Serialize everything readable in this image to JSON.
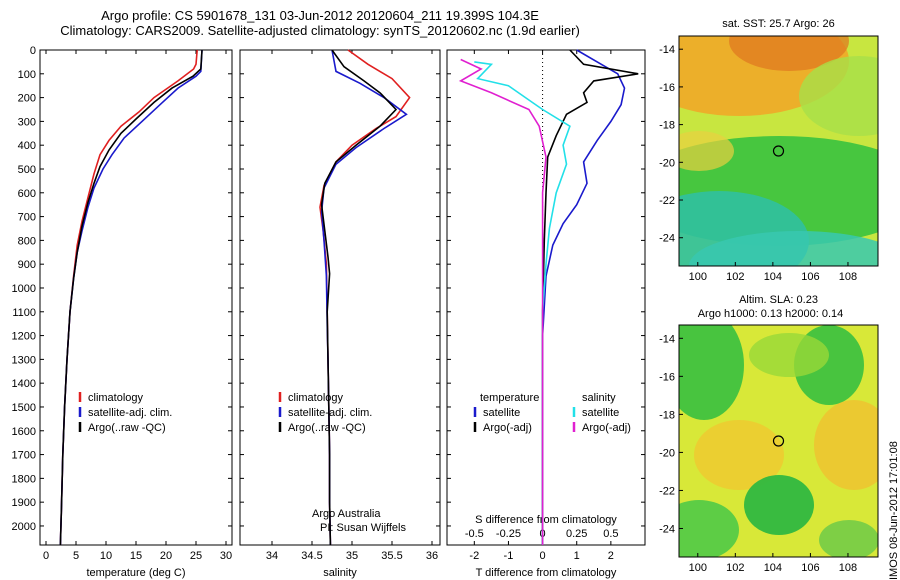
{
  "header": {
    "title_line1": "Argo profile: CS 5901678_131 03-Jun-2012 20120604_211 19.399S 104.3E",
    "title_line2": "Climatology: CARS2009. Satellite-adjusted climatology: synTS_20120602.nc (1.9d earlier)"
  },
  "colors": {
    "climatology": "#e02020",
    "satellite": "#1a1acc",
    "argo": "#000000",
    "sal_satellite": "#22e0e8",
    "sal_argo": "#e020d0"
  },
  "depth_ticks": [
    "0",
    "100",
    "200",
    "300",
    "400",
    "500",
    "600",
    "700",
    "800",
    "900",
    "1000",
    "1100",
    "1200",
    "1300",
    "1400",
    "1500",
    "1600",
    "1700",
    "1800",
    "1900",
    "2000"
  ],
  "chart_data": [
    {
      "type": "line",
      "panel": "temperature",
      "xlabel": "temperature (deg C)",
      "xlim": [
        -1,
        31
      ],
      "ylim": [
        2080,
        0
      ],
      "xticks": [
        "0",
        "5",
        "10",
        "15",
        "20",
        "25",
        "30"
      ],
      "legend": [
        "climatology",
        "satellite-adj. clim.",
        "Argo(..raw -QC)"
      ],
      "series": [
        {
          "name": "climatology",
          "color": "#e02020",
          "points": [
            [
              25.2,
              0
            ],
            [
              25.0,
              60
            ],
            [
              24.6,
              80
            ],
            [
              22.0,
              130
            ],
            [
              18.0,
              200
            ],
            [
              15.5,
              260
            ],
            [
              12.5,
              320
            ],
            [
              10.5,
              380
            ],
            [
              9.0,
              440
            ],
            [
              8.0,
              520
            ],
            [
              7.0,
              620
            ],
            [
              6.0,
              720
            ],
            [
              5.2,
              820
            ],
            [
              4.6,
              950
            ],
            [
              4.0,
              1100
            ],
            [
              3.5,
              1300
            ],
            [
              3.1,
              1500
            ],
            [
              2.8,
              1700
            ],
            [
              2.6,
              1900
            ],
            [
              2.4,
              2080
            ]
          ]
        },
        {
          "name": "satellite-adj. clim.",
          "color": "#1a1acc",
          "points": [
            [
              26.0,
              0
            ],
            [
              25.8,
              90
            ],
            [
              25.0,
              110
            ],
            [
              22.0,
              160
            ],
            [
              19.0,
              230
            ],
            [
              16.0,
              300
            ],
            [
              13.0,
              370
            ],
            [
              11.0,
              440
            ],
            [
              9.5,
              500
            ],
            [
              8.0,
              580
            ],
            [
              7.0,
              660
            ],
            [
              6.0,
              760
            ],
            [
              5.2,
              850
            ],
            [
              4.6,
              960
            ],
            [
              4.0,
              1100
            ],
            [
              3.5,
              1300
            ],
            [
              3.1,
              1500
            ],
            [
              2.8,
              1700
            ],
            [
              2.6,
              1900
            ],
            [
              2.4,
              2080
            ]
          ]
        },
        {
          "name": "Argo(..raw -QC)",
          "color": "#000000",
          "points": [
            [
              26.0,
              0
            ],
            [
              25.8,
              80
            ],
            [
              24.5,
              110
            ],
            [
              21.0,
              160
            ],
            [
              18.0,
              220
            ],
            [
              15.0,
              290
            ],
            [
              12.5,
              350
            ],
            [
              10.5,
              420
            ],
            [
              9.0,
              490
            ],
            [
              8.0,
              560
            ],
            [
              7.0,
              640
            ],
            [
              6.0,
              740
            ],
            [
              5.2,
              850
            ],
            [
              4.6,
              960
            ],
            [
              4.0,
              1100
            ],
            [
              3.5,
              1300
            ],
            [
              3.1,
              1500
            ],
            [
              2.8,
              1700
            ],
            [
              2.6,
              1900
            ],
            [
              2.4,
              2080
            ]
          ]
        }
      ]
    },
    {
      "type": "line",
      "panel": "salinity",
      "xlabel": "salinity",
      "xlim": [
        33.6,
        36.1
      ],
      "ylim": [
        2080,
        0
      ],
      "xticks": [
        "34",
        "34.5",
        "35",
        "35.5",
        "36"
      ],
      "legend": [
        "climatology",
        "satellite-adj. clim.",
        "Argo(..raw -QC)"
      ],
      "annotations": [
        "Argo Australia",
        "PI: Susan Wijffels"
      ],
      "series": [
        {
          "name": "climatology",
          "color": "#e02020",
          "points": [
            [
              34.95,
              0
            ],
            [
              35.2,
              60
            ],
            [
              35.5,
              120
            ],
            [
              35.72,
              200
            ],
            [
              35.55,
              280
            ],
            [
              35.3,
              330
            ],
            [
              35.0,
              400
            ],
            [
              34.8,
              470
            ],
            [
              34.65,
              570
            ],
            [
              34.6,
              660
            ],
            [
              34.64,
              760
            ],
            [
              34.68,
              900
            ],
            [
              34.69,
              1100
            ],
            [
              34.7,
              1300
            ],
            [
              34.71,
              1500
            ],
            [
              34.72,
              1700
            ],
            [
              34.72,
              1900
            ],
            [
              34.73,
              2080
            ]
          ]
        },
        {
          "name": "satellite-adj. clim.",
          "color": "#1a1acc",
          "points": [
            [
              34.75,
              0
            ],
            [
              34.8,
              90
            ],
            [
              35.1,
              140
            ],
            [
              35.4,
              200
            ],
            [
              35.68,
              270
            ],
            [
              35.4,
              330
            ],
            [
              35.05,
              410
            ],
            [
              34.8,
              480
            ],
            [
              34.65,
              580
            ],
            [
              34.62,
              680
            ],
            [
              34.65,
              800
            ],
            [
              34.68,
              950
            ],
            [
              34.69,
              1150
            ],
            [
              34.7,
              1300
            ],
            [
              34.71,
              1500
            ],
            [
              34.72,
              1700
            ],
            [
              34.72,
              1900
            ],
            [
              34.73,
              2080
            ]
          ]
        },
        {
          "name": "Argo(..raw -QC)",
          "color": "#000000",
          "points": [
            [
              34.75,
              0
            ],
            [
              34.9,
              70
            ],
            [
              35.15,
              130
            ],
            [
              35.35,
              180
            ],
            [
              35.55,
              250
            ],
            [
              35.35,
              320
            ],
            [
              35.05,
              400
            ],
            [
              34.8,
              470
            ],
            [
              34.66,
              560
            ],
            [
              34.62,
              650
            ],
            [
              34.66,
              760
            ],
            [
              34.7,
              870
            ],
            [
              34.72,
              940
            ],
            [
              34.69,
              1100
            ],
            [
              34.7,
              1300
            ],
            [
              34.71,
              1500
            ],
            [
              34.72,
              1700
            ],
            [
              34.72,
              1900
            ],
            [
              34.73,
              2080
            ]
          ]
        }
      ]
    },
    {
      "type": "line",
      "panel": "difference",
      "xlabel": "T difference from climatology",
      "xlabel_top": "S difference from climatology",
      "xlim": [
        -2.8,
        3.0
      ],
      "ylim": [
        2080,
        0
      ],
      "xticks": [
        "-2",
        "-1",
        "0",
        "1",
        "2"
      ],
      "xticks_top": [
        "-0.5",
        "-0.25",
        "0",
        "0.25",
        "0.5"
      ],
      "legend_headings": [
        "temperature",
        "salinity"
      ],
      "legend": [
        "satellite",
        "Argo(-adj)",
        "satellite",
        "Argo(-adj)"
      ],
      "series": [
        {
          "name": "satellite",
          "quantity": "temperature",
          "color": "#1a1acc",
          "points": [
            [
              1.0,
              0
            ],
            [
              1.6,
              50
            ],
            [
              2.2,
              100
            ],
            [
              2.4,
              160
            ],
            [
              2.3,
              230
            ],
            [
              2.0,
              300
            ],
            [
              1.6,
              380
            ],
            [
              1.2,
              470
            ],
            [
              1.3,
              560
            ],
            [
              1.0,
              650
            ],
            [
              0.6,
              730
            ],
            [
              0.3,
              820
            ],
            [
              0.1,
              950
            ],
            [
              0.0,
              1200
            ],
            [
              0.0,
              2080
            ]
          ]
        },
        {
          "name": "Argo(-adj)",
          "quantity": "temperature",
          "color": "#000000",
          "points": [
            [
              0.8,
              0
            ],
            [
              1.2,
              60
            ],
            [
              2.8,
              100
            ],
            [
              1.5,
              130
            ],
            [
              1.2,
              180
            ],
            [
              1.3,
              220
            ],
            [
              0.7,
              270
            ],
            [
              0.4,
              360
            ],
            [
              0.15,
              450
            ],
            [
              0.1,
              600
            ],
            [
              0.05,
              800
            ],
            [
              0.0,
              1100
            ],
            [
              0.0,
              2080
            ]
          ]
        },
        {
          "name": "satellite",
          "quantity": "salinity",
          "color": "#22e0e8",
          "points": [
            [
              -2.0,
              50
            ],
            [
              -1.5,
              60
            ],
            [
              -1.9,
              120
            ],
            [
              -1.0,
              150
            ],
            [
              -0.3,
              220
            ],
            [
              0.0,
              250
            ],
            [
              0.8,
              320
            ],
            [
              0.6,
              400
            ],
            [
              0.7,
              480
            ],
            [
              0.4,
              600
            ],
            [
              0.2,
              750
            ],
            [
              0.1,
              900
            ],
            [
              0.0,
              1100
            ],
            [
              0.0,
              2080
            ]
          ]
        },
        {
          "name": "Argo(-adj)",
          "quantity": "salinity",
          "color": "#e020d0",
          "points": [
            [
              -2.4,
              40
            ],
            [
              -1.8,
              80
            ],
            [
              -2.4,
              130
            ],
            [
              -1.5,
              180
            ],
            [
              -0.4,
              250
            ],
            [
              -0.1,
              320
            ],
            [
              0.1,
              450
            ],
            [
              0.0,
              600
            ],
            [
              0.0,
              2080
            ]
          ]
        }
      ]
    },
    {
      "type": "heatmap",
      "panel": "map",
      "title": "sat. SST: 25.7 Argo: 26",
      "xlim": [
        99,
        109.6
      ],
      "ylim": [
        -25.5,
        -13.3
      ],
      "xticks": [
        "100",
        "102",
        "104",
        "106",
        "108"
      ],
      "yticks": [
        "-14",
        "-16",
        "-18",
        "-20",
        "-22",
        "-24"
      ],
      "marker": [
        104.3,
        -19.4
      ]
    },
    {
      "type": "heatmap",
      "panel": "map",
      "title_line1": "Altim. SLA: 0.23",
      "title_line2": "Argo h1000: 0.13 h2000: 0.14",
      "xlim": [
        99,
        109.6
      ],
      "ylim": [
        -25.5,
        -13.3
      ],
      "xticks": [
        "100",
        "102",
        "104",
        "106",
        "108"
      ],
      "yticks": [
        "-14",
        "-16",
        "-18",
        "-20",
        "-22",
        "-24"
      ],
      "marker": [
        104.3,
        -19.4
      ]
    }
  ],
  "footer": {
    "stamp": "IMOS 08-Jun-2012 17:01:08"
  }
}
